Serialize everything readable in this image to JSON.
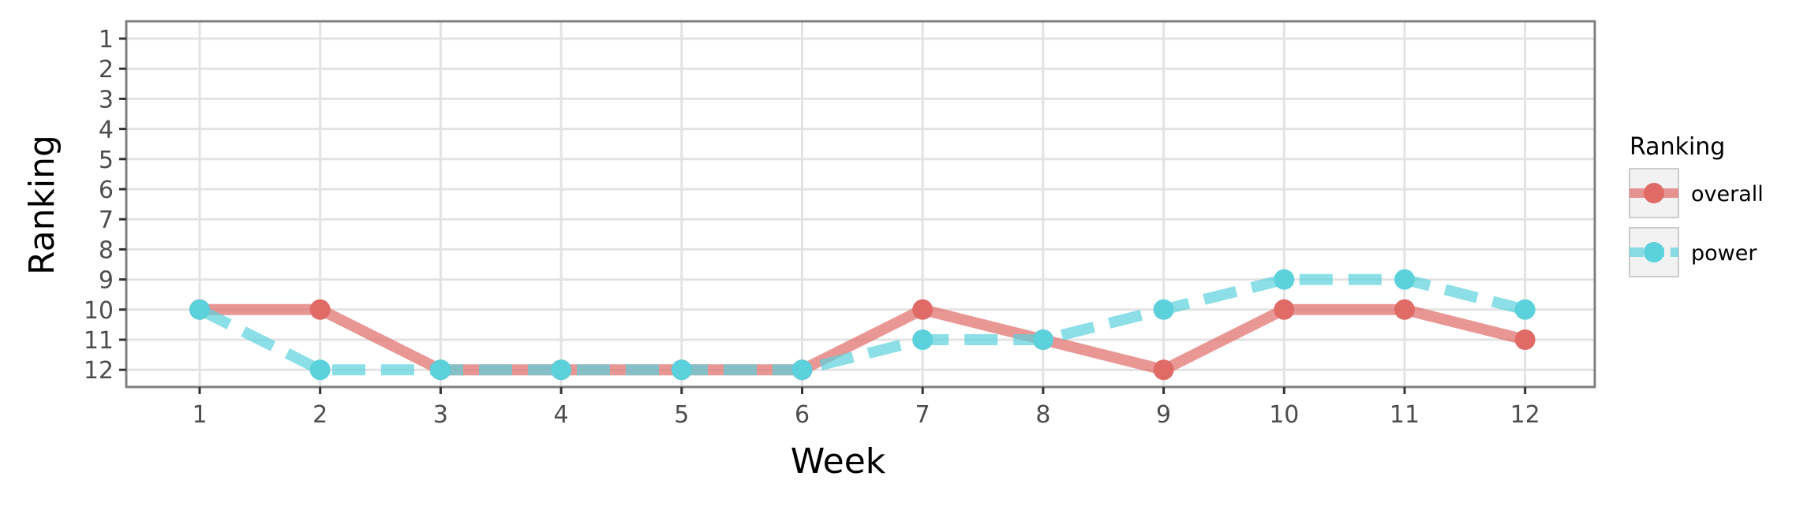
{
  "chart_data": {
    "type": "line",
    "title": "",
    "xlabel": "Week",
    "ylabel": "Ranking",
    "x": [
      1,
      2,
      3,
      4,
      5,
      6,
      7,
      8,
      9,
      10,
      11,
      12
    ],
    "x_ticks": [
      "1",
      "2",
      "3",
      "4",
      "5",
      "6",
      "7",
      "8",
      "9",
      "10",
      "11",
      "12"
    ],
    "y_ticks": [
      "1",
      "2",
      "3",
      "4",
      "5",
      "6",
      "7",
      "8",
      "9",
      "10",
      "11",
      "12"
    ],
    "xlim": [
      0.4,
      12.6
    ],
    "ylim": [
      12.6,
      0.4
    ],
    "y_reversed": true,
    "grid": true,
    "legend": {
      "title": "Ranking",
      "position": "right"
    },
    "series": [
      {
        "name": "overall",
        "color": "#e06b66",
        "linestyle": "solid",
        "values": [
          10,
          10,
          12,
          12,
          12,
          12,
          10,
          11,
          12,
          10,
          10,
          11
        ]
      },
      {
        "name": "power",
        "color": "#5bd1dc",
        "linestyle": "dashed",
        "values": [
          10,
          12,
          12,
          12,
          12,
          12,
          11,
          11,
          10,
          9,
          9,
          10
        ]
      }
    ]
  }
}
